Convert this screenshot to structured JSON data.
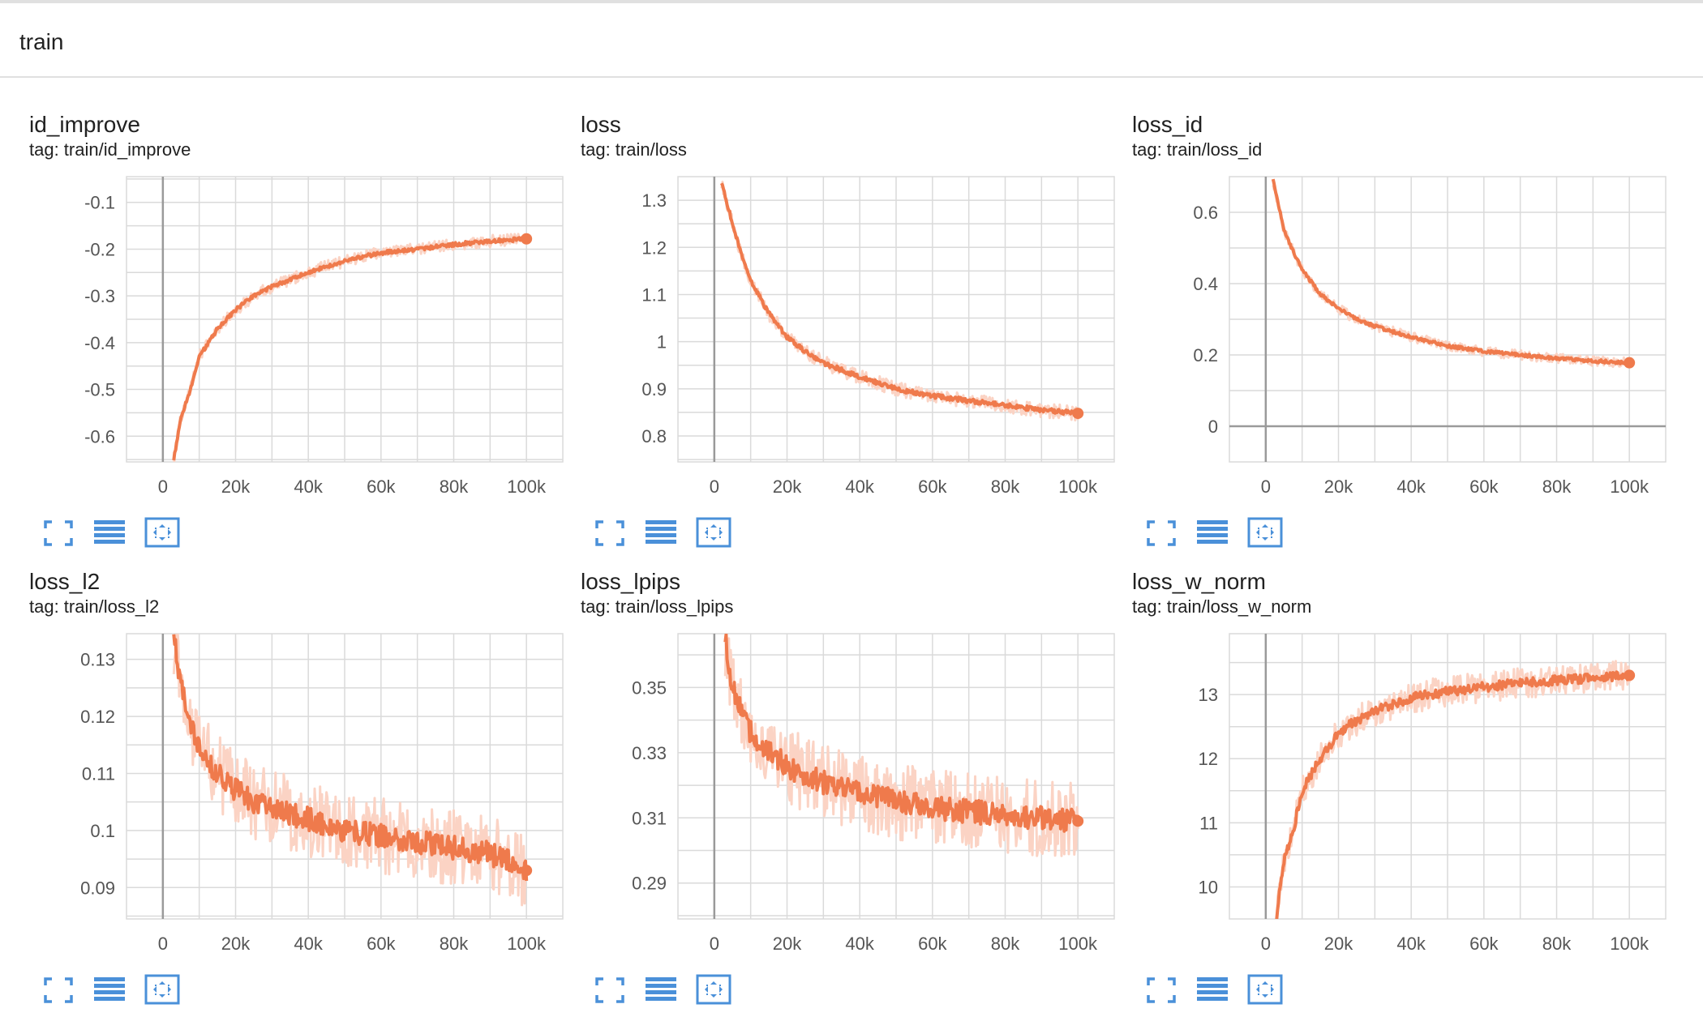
{
  "section": {
    "title": "train"
  },
  "toolbar": {
    "fullscreen_icon": "fullscreen-icon",
    "data_table_icon": "list-icon",
    "fit_domain_icon": "fit-domain-icon"
  },
  "colors": {
    "series": "#ef7a4c",
    "series_raw": "#fbd3c4",
    "grid": "#dadada",
    "axis": "#9a9a9a",
    "icon": "#4a90d9"
  },
  "cards": [
    {
      "title": "id_improve",
      "tag": "tag: train/id_improve",
      "chart_data": {
        "type": "line",
        "title": "id_improve",
        "xlabel": "",
        "ylabel": "",
        "x_ticks": [
          "0",
          "20k",
          "40k",
          "60k",
          "80k",
          "100k"
        ],
        "y_ticks": [
          "-0.1",
          "-0.2",
          "-0.3",
          "-0.4",
          "-0.5",
          "-0.6"
        ],
        "xlim": [
          -10000,
          110000
        ],
        "ylim": [
          -0.655,
          -0.045
        ],
        "grid": true,
        "series": [
          {
            "x": [
              3000,
              5000,
              8000,
              10000,
              15000,
              20000,
              25000,
              30000,
              40000,
              50000,
              60000,
              70000,
              80000,
              90000,
              100000
            ],
            "y": [
              -0.65,
              -0.56,
              -0.49,
              -0.43,
              -0.37,
              -0.33,
              -0.3,
              -0.28,
              -0.25,
              -0.225,
              -0.208,
              -0.2,
              -0.19,
              -0.183,
              -0.178
            ]
          }
        ]
      }
    },
    {
      "title": "loss",
      "tag": "tag: train/loss",
      "chart_data": {
        "type": "line",
        "title": "loss",
        "xlabel": "",
        "ylabel": "",
        "x_ticks": [
          "0",
          "20k",
          "40k",
          "60k",
          "80k",
          "100k"
        ],
        "y_ticks": [
          "1.3",
          "1.2",
          "1.1",
          "1",
          "0.9",
          "0.8"
        ],
        "xlim": [
          -10000,
          110000
        ],
        "ylim": [
          0.745,
          1.35
        ],
        "grid": true,
        "series": [
          {
            "x": [
              2000,
              5000,
              8000,
              10000,
              15000,
              20000,
              25000,
              30000,
              40000,
              50000,
              60000,
              70000,
              80000,
              90000,
              100000
            ],
            "y": [
              1.34,
              1.25,
              1.17,
              1.13,
              1.06,
              1.01,
              0.98,
              0.955,
              0.925,
              0.9,
              0.885,
              0.875,
              0.865,
              0.855,
              0.848
            ]
          }
        ]
      }
    },
    {
      "title": "loss_id",
      "tag": "tag: train/loss_id",
      "chart_data": {
        "type": "line",
        "title": "loss_id",
        "xlabel": "",
        "ylabel": "",
        "x_ticks": [
          "0",
          "20k",
          "40k",
          "60k",
          "80k",
          "100k"
        ],
        "y_ticks": [
          "0.6",
          "0.4",
          "0.2",
          "0"
        ],
        "xlim": [
          -10000,
          110000
        ],
        "ylim": [
          -0.1,
          0.7
        ],
        "grid": true,
        "series": [
          {
            "x": [
              2000,
              5000,
              8000,
              10000,
              15000,
              20000,
              25000,
              30000,
              40000,
              50000,
              60000,
              70000,
              80000,
              90000,
              100000
            ],
            "y": [
              0.69,
              0.55,
              0.48,
              0.44,
              0.37,
              0.33,
              0.3,
              0.28,
              0.25,
              0.225,
              0.21,
              0.2,
              0.19,
              0.183,
              0.178
            ]
          }
        ]
      }
    },
    {
      "title": "loss_l2",
      "tag": "tag: train/loss_l2",
      "chart_data": {
        "type": "line",
        "title": "loss_l2",
        "xlabel": "",
        "ylabel": "",
        "x_ticks": [
          "0",
          "20k",
          "40k",
          "60k",
          "80k",
          "100k"
        ],
        "y_ticks": [
          "0.13",
          "0.12",
          "0.11",
          "0.1",
          "0.09"
        ],
        "xlim": [
          -10000,
          110000
        ],
        "ylim": [
          0.0845,
          0.1345
        ],
        "grid": true,
        "series": [
          {
            "x": [
              3000,
              5000,
              8000,
              10000,
              15000,
              20000,
              25000,
              30000,
              40000,
              50000,
              60000,
              70000,
              80000,
              90000,
              100000
            ],
            "y": [
              0.134,
              0.125,
              0.118,
              0.114,
              0.11,
              0.107,
              0.105,
              0.104,
              0.102,
              0.1,
              0.099,
              0.098,
              0.097,
              0.096,
              0.093
            ]
          }
        ]
      }
    },
    {
      "title": "loss_lpips",
      "tag": "tag: train/loss_lpips",
      "chart_data": {
        "type": "line",
        "title": "loss_lpips",
        "xlabel": "",
        "ylabel": "",
        "x_ticks": [
          "0",
          "20k",
          "40k",
          "60k",
          "80k",
          "100k"
        ],
        "y_ticks": [
          "0.35",
          "0.33",
          "0.31",
          "0.29"
        ],
        "xlim": [
          -10000,
          110000
        ],
        "ylim": [
          0.279,
          0.3665
        ],
        "grid": true,
        "series": [
          {
            "x": [
              3000,
              5000,
              8000,
              10000,
              15000,
              20000,
              25000,
              30000,
              40000,
              50000,
              60000,
              70000,
              80000,
              90000,
              100000
            ],
            "y": [
              0.365,
              0.35,
              0.34,
              0.336,
              0.33,
              0.326,
              0.323,
              0.321,
              0.318,
              0.315,
              0.313,
              0.312,
              0.311,
              0.31,
              0.309
            ]
          }
        ]
      }
    },
    {
      "title": "loss_w_norm",
      "tag": "tag: train/loss_w_norm",
      "chart_data": {
        "type": "line",
        "title": "loss_w_norm",
        "xlabel": "",
        "ylabel": "",
        "x_ticks": [
          "0",
          "20k",
          "40k",
          "60k",
          "80k",
          "100k"
        ],
        "y_ticks": [
          "13",
          "12",
          "11",
          "10"
        ],
        "xlim": [
          -10000,
          110000
        ],
        "ylim": [
          9.5,
          13.95
        ],
        "grid": true,
        "series": [
          {
            "x": [
              3000,
              5000,
              8000,
              10000,
              15000,
              20000,
              25000,
              30000,
              40000,
              50000,
              60000,
              70000,
              80000,
              90000,
              100000
            ],
            "y": [
              9.55,
              10.4,
              11.0,
              11.5,
              12.0,
              12.4,
              12.6,
              12.75,
              12.95,
              13.05,
              13.12,
              13.18,
              13.22,
              13.26,
              13.3
            ]
          }
        ]
      }
    }
  ]
}
